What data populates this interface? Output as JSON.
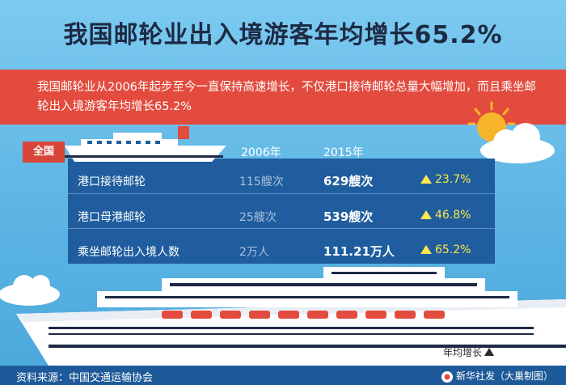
{
  "title": "我国邮轮业出入境游客年均增长65.2%",
  "intro": "我国邮轮业从2006年起步至今一直保持高速增长，不仅港口接待邮轮总量大幅增加，而且乘坐邮轮出入境游客年均增长65.2%",
  "table": {
    "scope": "全国",
    "col_2006": "2006年",
    "col_2015": "2015年",
    "rows": [
      {
        "label": "港口接待邮轮",
        "v2006": "115艘次",
        "v2015": "629艘次",
        "growth": "23.7%"
      },
      {
        "label": "港口母港邮轮",
        "v2006": "25艘次",
        "v2015": "539艘次",
        "growth": "46.8%"
      },
      {
        "label": "乘坐邮轮出入境人数",
        "v2006": "2万人",
        "v2015": "111.21万人",
        "growth": "65.2%"
      }
    ]
  },
  "legend": "年均增长",
  "source": "资料来源：中国交通运输协会",
  "credit": "新华社发（大巢制图）",
  "colors": {
    "banner": "#e24b3e",
    "table": "#1f5d9e",
    "growth": "#ffe54a",
    "footer": "#1e5a99"
  }
}
